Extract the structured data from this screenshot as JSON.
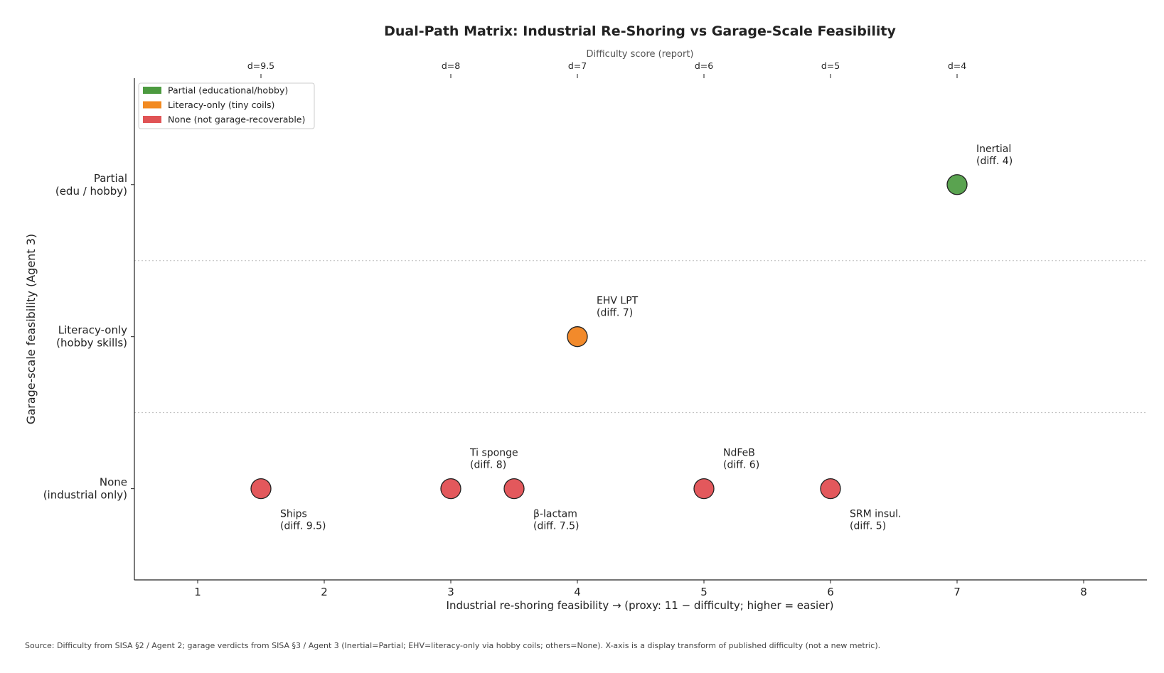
{
  "chart_data": {
    "type": "scatter",
    "title": "Dual-Path Matrix: Industrial Re-Shoring vs Garage-Scale Feasibility",
    "xlabel": "Industrial re-shoring feasibility  →  (proxy: 11 − difficulty; higher = easier)",
    "ylabel": "Garage-scale feasibility (Agent 3)",
    "top_axis_label": "Difficulty score (report)",
    "xlim": [
      0.5,
      8.5
    ],
    "ylim": [
      -0.6,
      2.7
    ],
    "x_ticks": [
      1,
      2,
      3,
      4,
      5,
      6,
      7,
      8
    ],
    "top_ticks": [
      {
        "x": 1.5,
        "label": "d=9.5"
      },
      {
        "x": 3,
        "label": "d=8"
      },
      {
        "x": 4,
        "label": "d=7"
      },
      {
        "x": 5,
        "label": "d=6"
      },
      {
        "x": 6,
        "label": "d=5"
      },
      {
        "x": 7,
        "label": "d=4"
      }
    ],
    "y_categories": [
      {
        "y": 0,
        "line1": "None",
        "line2": "(industrial only)"
      },
      {
        "y": 1,
        "line1": "Literacy-only",
        "line2": "(hobby skills)"
      },
      {
        "y": 2,
        "line1": "Partial",
        "line2": "(edu / hobby)"
      }
    ],
    "separators": [
      0.5,
      1.5
    ],
    "grid": false,
    "legend_position": "top-left",
    "legend": [
      {
        "label": "Partial (educational/hobby)",
        "color": "#4c9a3f"
      },
      {
        "label": "Literacy-only (tiny coils)",
        "color": "#f28a21"
      },
      {
        "label": "None (not garage-recoverable)",
        "color": "#e05355"
      }
    ],
    "colors": {
      "Partial": "#5aa350",
      "Literacy-only": "#f28a2b",
      "None": "#e3585c"
    },
    "points": [
      {
        "x": 1.5,
        "y": 0,
        "category": "None",
        "name": "Ships",
        "diff": "(diff. 9.5)",
        "label_pos": "below"
      },
      {
        "x": 3,
        "y": 0,
        "category": "None",
        "name": "Ti sponge",
        "diff": "(diff. 8)",
        "label_pos": "above"
      },
      {
        "x": 3.5,
        "y": 0,
        "category": "None",
        "name": "β-lactam",
        "diff": "(diff. 7.5)",
        "label_pos": "below"
      },
      {
        "x": 5,
        "y": 0,
        "category": "None",
        "name": "NdFeB",
        "diff": "(diff. 6)",
        "label_pos": "above"
      },
      {
        "x": 6,
        "y": 0,
        "category": "None",
        "name": "SRM insul.",
        "diff": "(diff. 5)",
        "label_pos": "below"
      },
      {
        "x": 4,
        "y": 1,
        "category": "Literacy-only",
        "name": "EHV LPT",
        "diff": "(diff. 7)",
        "label_pos": "above"
      },
      {
        "x": 7,
        "y": 2,
        "category": "Partial",
        "name": "Inertial",
        "diff": "(diff. 4)",
        "label_pos": "above"
      }
    ]
  },
  "source_note": "Source: Difficulty from SISA §2 / Agent 2; garage verdicts from SISA §3 / Agent 3 (Inertial=Partial; EHV=literacy-only via hobby coils; others=None). X-axis is a display transform of published difficulty (not a new metric)."
}
